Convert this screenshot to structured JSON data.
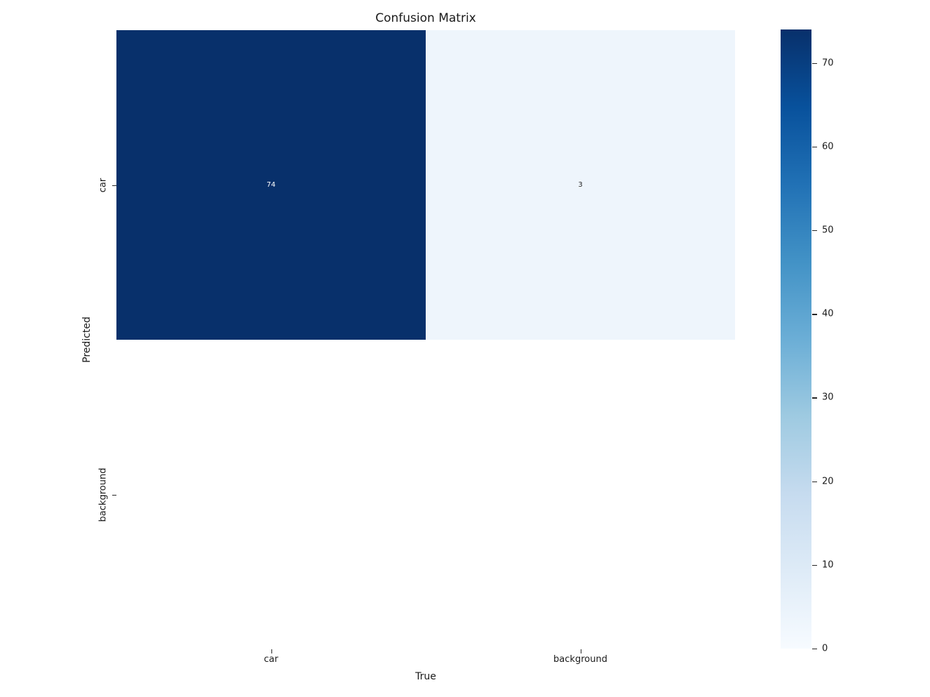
{
  "figure": {
    "background": "#ffffff"
  },
  "chart_data": {
    "type": "heatmap",
    "title": "Confusion Matrix",
    "xlabel": "True",
    "ylabel": "Predicted",
    "x_categories": [
      "car",
      "background"
    ],
    "y_categories": [
      "car",
      "background"
    ],
    "matrix": [
      [
        74,
        3
      ],
      [
        null,
        null
      ]
    ],
    "vmin": 0,
    "vmax": 74,
    "colormap": "Blues",
    "legend_position": "right-colorbar",
    "grid": false,
    "colorbar_ticks": [
      0,
      10,
      20,
      30,
      40,
      50,
      60,
      70
    ],
    "cell_colors": [
      [
        "#08306b",
        "#eef5fc"
      ],
      [
        null,
        null
      ]
    ],
    "cell_text_colors": [
      [
        "#ffffff",
        "#262626"
      ],
      [
        null,
        null
      ]
    ],
    "colormap_stops": [
      {
        "pos": 0.0,
        "color": "#f7fbff"
      },
      {
        "pos": 0.125,
        "color": "#deebf7"
      },
      {
        "pos": 0.25,
        "color": "#c6dbef"
      },
      {
        "pos": 0.375,
        "color": "#9ecae1"
      },
      {
        "pos": 0.5,
        "color": "#6baed6"
      },
      {
        "pos": 0.625,
        "color": "#4292c6"
      },
      {
        "pos": 0.75,
        "color": "#2171b5"
      },
      {
        "pos": 0.875,
        "color": "#08519c"
      },
      {
        "pos": 1.0,
        "color": "#08306b"
      }
    ]
  }
}
